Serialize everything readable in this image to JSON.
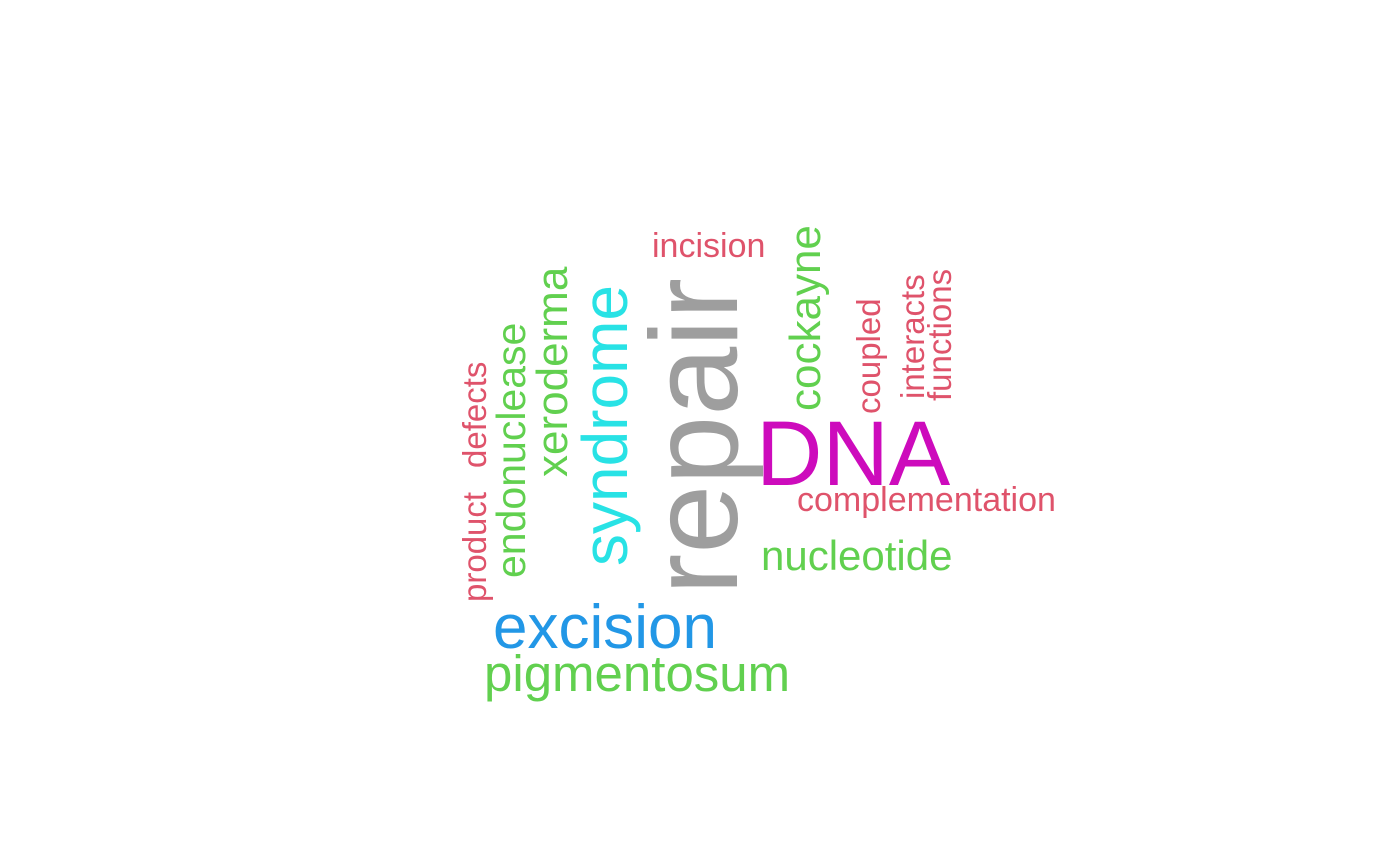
{
  "word_cloud": {
    "words": [
      {
        "text": "repair",
        "color": "#9E9E9E",
        "orientation": "vertical"
      },
      {
        "text": "DNA",
        "color": "#CD0BBC",
        "orientation": "horizontal"
      },
      {
        "text": "syndrome",
        "color": "#28E2E5",
        "orientation": "vertical"
      },
      {
        "text": "excision",
        "color": "#2297E6",
        "orientation": "horizontal"
      },
      {
        "text": "pigmentosum",
        "color": "#61D04F",
        "orientation": "horizontal"
      },
      {
        "text": "nucleotide",
        "color": "#61D04F",
        "orientation": "horizontal"
      },
      {
        "text": "cockayne",
        "color": "#61D04F",
        "orientation": "vertical"
      },
      {
        "text": "xeroderma",
        "color": "#61D04F",
        "orientation": "vertical"
      },
      {
        "text": "endonuclease",
        "color": "#61D04F",
        "orientation": "vertical"
      },
      {
        "text": "complementation",
        "color": "#DF536B",
        "orientation": "horizontal"
      },
      {
        "text": "incision",
        "color": "#DF536B",
        "orientation": "horizontal"
      },
      {
        "text": "coupled",
        "color": "#DF536B",
        "orientation": "vertical"
      },
      {
        "text": "interacts",
        "color": "#DF536B",
        "orientation": "vertical"
      },
      {
        "text": "functions",
        "color": "#DF536B",
        "orientation": "vertical"
      },
      {
        "text": "defects",
        "color": "#DF536B",
        "orientation": "vertical"
      },
      {
        "text": "product",
        "color": "#DF536B",
        "orientation": "vertical"
      }
    ]
  }
}
